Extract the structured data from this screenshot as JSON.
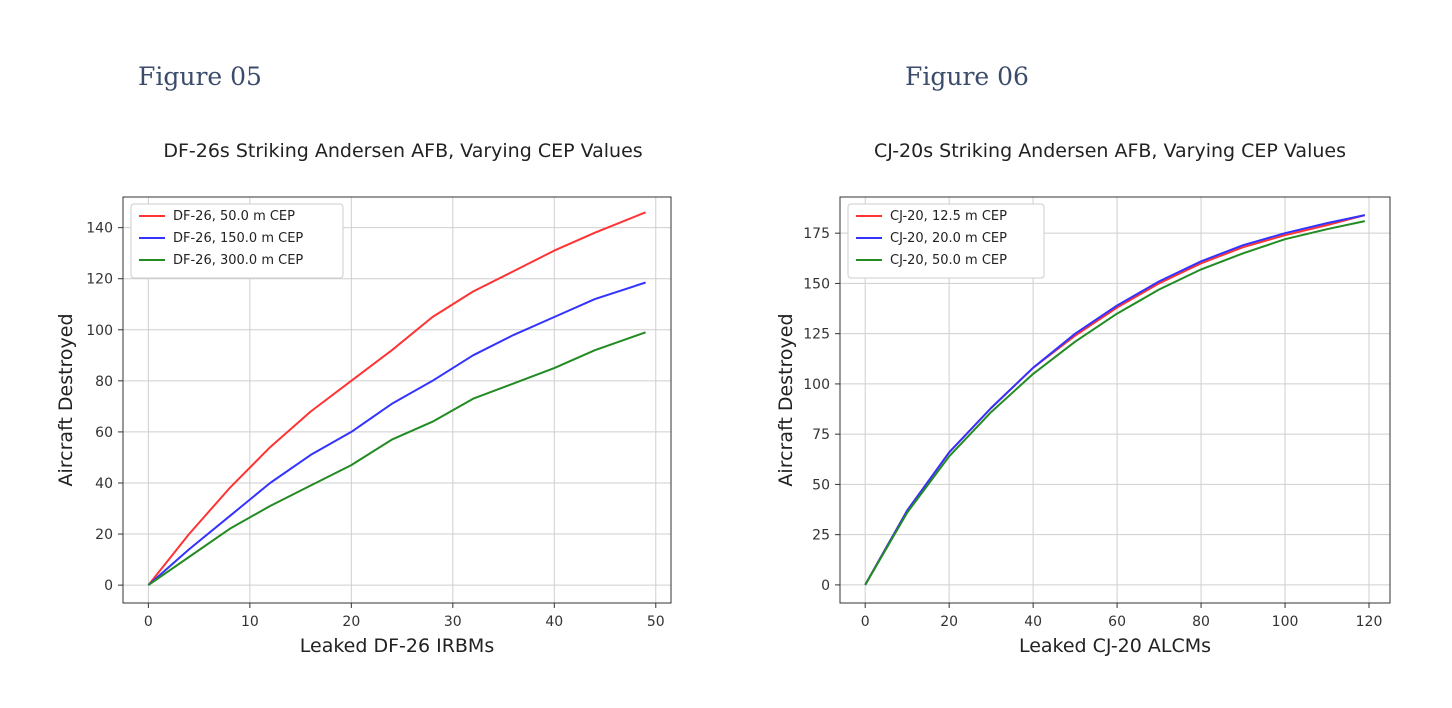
{
  "figures": [
    {
      "heading": "Figure 05",
      "title": "DF-26s Striking Andersen AFB, Varying CEP Values"
    },
    {
      "heading": "Figure 06",
      "title": "CJ-20s Striking Andersen AFB, Varying CEP Values"
    }
  ],
  "chart_data": [
    {
      "type": "line",
      "title": "DF-26s Striking Andersen AFB, Varying CEP Values",
      "xlabel": "Leaked DF-26 IRBMs",
      "ylabel": "Aircraft Destroyed",
      "xlim": [
        -2.5,
        51.5
      ],
      "ylim": [
        -7,
        152
      ],
      "xticks": [
        0,
        10,
        20,
        30,
        40,
        50
      ],
      "yticks": [
        0,
        20,
        40,
        60,
        80,
        100,
        120,
        140
      ],
      "grid": true,
      "legend": "top-left",
      "x": [
        0,
        4,
        8,
        12,
        16,
        20,
        24,
        28,
        32,
        36,
        40,
        44,
        49
      ],
      "series": [
        {
          "name": "DF-26, 50.0 m CEP",
          "color": "#ff3333",
          "values": [
            0,
            20,
            38,
            54,
            68,
            80,
            92,
            105,
            115,
            123,
            131,
            138,
            146
          ]
        },
        {
          "name": "DF-26, 150.0 m CEP",
          "color": "#3333ff",
          "values": [
            0,
            14,
            27,
            40,
            51,
            60,
            71,
            80,
            90,
            98,
            105,
            112,
            118.5
          ]
        },
        {
          "name": "DF-26, 300.0 m CEP",
          "color": "#228b22",
          "values": [
            0,
            11,
            22,
            31,
            39,
            47,
            57,
            64,
            73,
            79,
            85,
            92,
            99
          ]
        }
      ]
    },
    {
      "type": "line",
      "title": "CJ-20s Striking Andersen AFB, Varying CEP Values",
      "xlabel": "Leaked CJ-20 ALCMs",
      "ylabel": "Aircraft Destroyed",
      "xlim": [
        -6,
        125
      ],
      "ylim": [
        -9,
        193
      ],
      "xticks": [
        0,
        20,
        40,
        60,
        80,
        100,
        120
      ],
      "yticks": [
        0,
        25,
        50,
        75,
        100,
        125,
        150,
        175
      ],
      "grid": true,
      "legend": "top-left",
      "x": [
        0,
        10,
        20,
        30,
        40,
        50,
        60,
        70,
        80,
        90,
        100,
        110,
        119
      ],
      "series": [
        {
          "name": "CJ-20, 12.5 m CEP",
          "color": "#ff3333",
          "values": [
            0,
            37,
            66,
            88,
            108,
            124,
            138,
            150,
            160,
            168,
            174,
            179,
            184
          ]
        },
        {
          "name": "CJ-20, 20.0 m CEP",
          "color": "#3333ff",
          "values": [
            0,
            37,
            66,
            88,
            108,
            125,
            139,
            151,
            161,
            169,
            175,
            180,
            184
          ]
        },
        {
          "name": "CJ-20, 50.0 m CEP",
          "color": "#228b22",
          "values": [
            0,
            36,
            64,
            86,
            105,
            121,
            135,
            147,
            157,
            165,
            172,
            177,
            181
          ]
        }
      ]
    }
  ]
}
